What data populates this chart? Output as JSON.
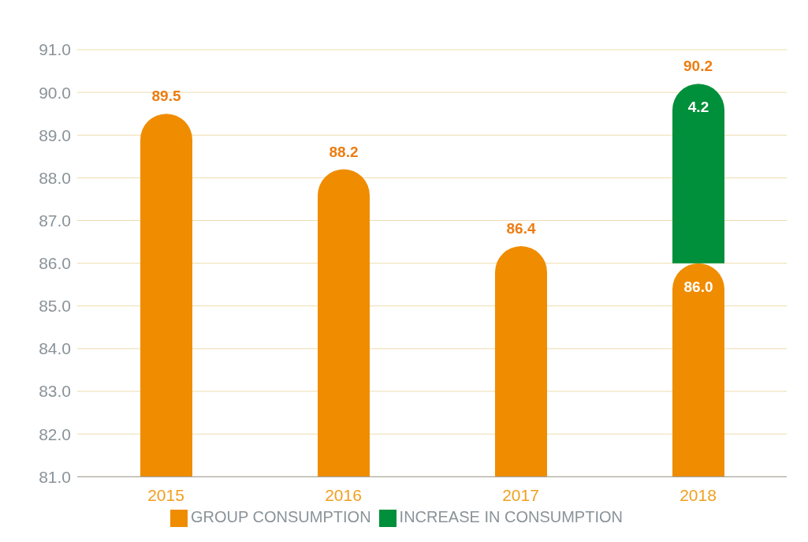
{
  "chart_data": {
    "type": "bar",
    "categories": [
      "2015",
      "2016",
      "2017",
      "2018"
    ],
    "series": [
      {
        "name": "GROUP CONSUMPTION",
        "color": "#f08c00",
        "values": [
          89.5,
          88.2,
          86.4,
          86.0
        ],
        "value_labels": [
          "89.5",
          "88.2",
          "86.4",
          "86.0"
        ]
      },
      {
        "name": "INCREASE IN CONSUMPTION",
        "color": "#008f3a",
        "values": [
          null,
          null,
          null,
          4.2
        ],
        "base": [
          null,
          null,
          null,
          86.0
        ],
        "value_labels": [
          null,
          null,
          null,
          "4.2"
        ]
      }
    ],
    "annotations": [
      {
        "text": "90.2",
        "x": "2018",
        "y": 90.2
      }
    ],
    "ylim": [
      81,
      91
    ],
    "yticks": [
      {
        "value": 81,
        "label": "81.0"
      },
      {
        "value": 82,
        "label": "82.0"
      },
      {
        "value": 83,
        "label": "83.0"
      },
      {
        "value": 84,
        "label": "84.0"
      },
      {
        "value": 85,
        "label": "85.0"
      },
      {
        "value": 86,
        "label": "86.0"
      },
      {
        "value": 87,
        "label": "87.0"
      },
      {
        "value": 88,
        "label": "88.0"
      },
      {
        "value": 89,
        "label": "89.0"
      },
      {
        "value": 90,
        "label": "90.0"
      },
      {
        "value": 91,
        "label": "91.0"
      }
    ],
    "grid": "y",
    "legend": "bottom"
  }
}
